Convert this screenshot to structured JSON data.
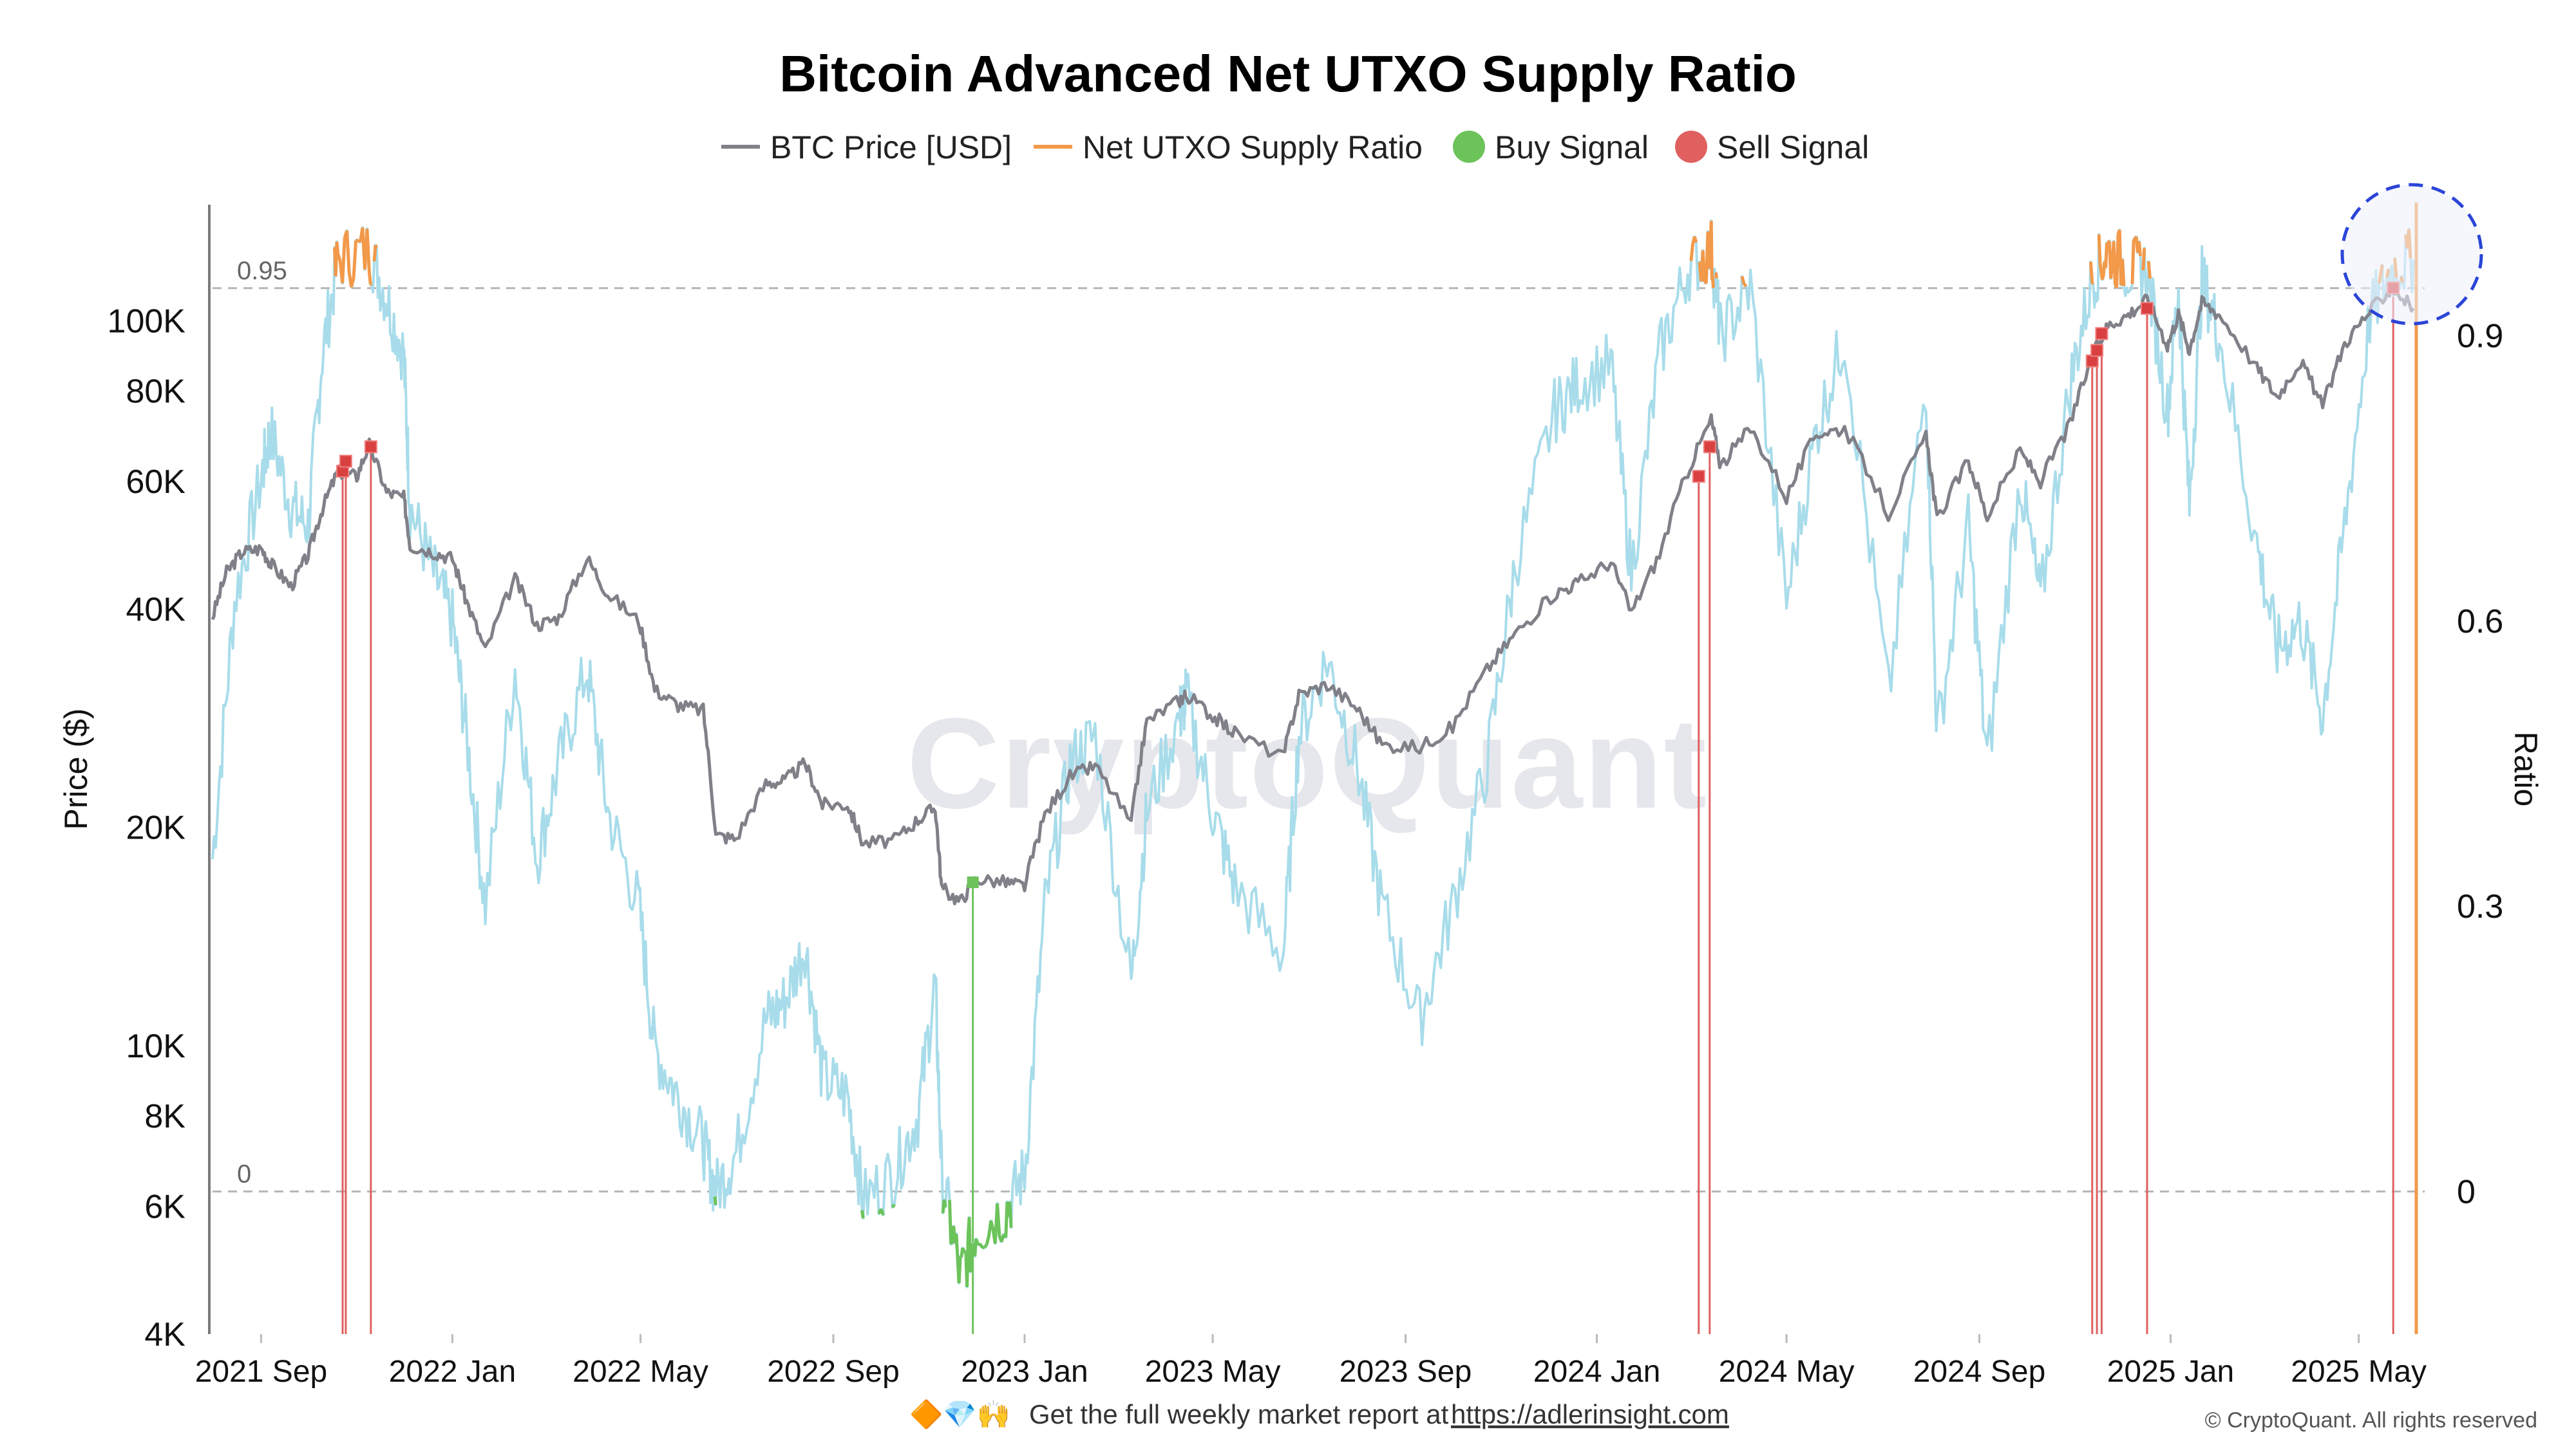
{
  "chart_data": {
    "type": "line",
    "title": "Bitcoin Advanced Net UTXO Supply Ratio",
    "legend": [
      {
        "name": "BTC Price [USD]",
        "marker": "line",
        "color": "#808089"
      },
      {
        "name": "Net UTXO Supply Ratio",
        "marker": "line",
        "color": "#f2994a"
      },
      {
        "name": "Buy Signal",
        "marker": "dot",
        "color": "#6cc35a"
      },
      {
        "name": "Sell Signal",
        "marker": "dot",
        "color": "#e06060"
      }
    ],
    "legend_position": "top-center",
    "y_left": {
      "label": "Price ($)",
      "scale": "log",
      "range": [
        4000,
        150000
      ],
      "ticks": [
        {
          "value": 4000,
          "label": "4K"
        },
        {
          "value": 6000,
          "label": "6K"
        },
        {
          "value": 8000,
          "label": "8K"
        },
        {
          "value": 10000,
          "label": "10K"
        },
        {
          "value": 20000,
          "label": "20K"
        },
        {
          "value": 40000,
          "label": "40K"
        },
        {
          "value": 60000,
          "label": "60K"
        },
        {
          "value": 80000,
          "label": "80K"
        },
        {
          "value": 100000,
          "label": "100K"
        }
      ]
    },
    "y_right": {
      "label": "Ratio",
      "range": [
        -0.15,
        1.05
      ],
      "ticks": [
        {
          "value": 0,
          "label": "0"
        },
        {
          "value": 0.3,
          "label": "0.3"
        },
        {
          "value": 0.6,
          "label": "0.6"
        },
        {
          "value": 0.9,
          "label": "0.9"
        }
      ]
    },
    "x_range": [
      "2021-08-01",
      "2025-06-10"
    ],
    "x_ticks": [
      {
        "date": "2021-09-01",
        "label": "2021 Sep"
      },
      {
        "date": "2022-01-01",
        "label": "2022 Jan"
      },
      {
        "date": "2022-05-01",
        "label": "2022 May"
      },
      {
        "date": "2022-09-01",
        "label": "2022 Sep"
      },
      {
        "date": "2023-01-01",
        "label": "2023 Jan"
      },
      {
        "date": "2023-05-01",
        "label": "2023 May"
      },
      {
        "date": "2023-09-01",
        "label": "2023 Sep"
      },
      {
        "date": "2024-01-01",
        "label": "2024 Jan"
      },
      {
        "date": "2024-05-01",
        "label": "2024 May"
      },
      {
        "date": "2024-09-01",
        "label": "2024 Sep"
      },
      {
        "date": "2025-01-01",
        "label": "2025 Jan"
      },
      {
        "date": "2025-05-01",
        "label": "2025 May"
      }
    ],
    "reference_lines": [
      {
        "value": 0.95,
        "label": "0.95"
      },
      {
        "value": 0,
        "label": "0"
      }
    ],
    "grid": false,
    "watermark": "CryptoQuant",
    "colors": {
      "price": "#808089",
      "ratio": "#a8dcea",
      "ratio_above": "#f2994a",
      "ratio_below": "#6cc35a",
      "buy": "#6cc35a",
      "sell": "#e06060",
      "highlight_circle": "#2b45d8"
    },
    "series": [
      {
        "name": "BTC Price [USD]",
        "points": [
          [
            "2021-08-01",
            39000
          ],
          [
            "2021-08-10",
            45000
          ],
          [
            "2021-08-20",
            48000
          ],
          [
            "2021-09-01",
            48500
          ],
          [
            "2021-09-08",
            46000
          ],
          [
            "2021-09-20",
            43000
          ],
          [
            "2021-10-01",
            47500
          ],
          [
            "2021-10-10",
            55000
          ],
          [
            "2021-10-20",
            62000
          ],
          [
            "2021-11-01",
            61000
          ],
          [
            "2021-11-09",
            67500
          ],
          [
            "2021-11-20",
            58000
          ],
          [
            "2021-12-01",
            57000
          ],
          [
            "2021-12-05",
            49000
          ],
          [
            "2021-12-20",
            48000
          ],
          [
            "2022-01-01",
            47000
          ],
          [
            "2022-01-10",
            41000
          ],
          [
            "2022-01-22",
            35000
          ],
          [
            "2022-02-10",
            44000
          ],
          [
            "2022-02-24",
            38000
          ],
          [
            "2022-03-10",
            39000
          ],
          [
            "2022-03-28",
            47000
          ],
          [
            "2022-04-10",
            42000
          ],
          [
            "2022-04-30",
            38500
          ],
          [
            "2022-05-10",
            31000
          ],
          [
            "2022-05-25",
            29500
          ],
          [
            "2022-06-10",
            29000
          ],
          [
            "2022-06-18",
            19500
          ],
          [
            "2022-07-01",
            19300
          ],
          [
            "2022-07-20",
            23000
          ],
          [
            "2022-08-01",
            23200
          ],
          [
            "2022-08-14",
            24500
          ],
          [
            "2022-08-25",
            21500
          ],
          [
            "2022-09-10",
            21500
          ],
          [
            "2022-09-20",
            19000
          ],
          [
            "2022-10-10",
            19200
          ],
          [
            "2022-10-25",
            20500
          ],
          [
            "2022-11-05",
            21300
          ],
          [
            "2022-11-09",
            16500
          ],
          [
            "2022-11-21",
            15800
          ],
          [
            "2022-12-01",
            17000
          ],
          [
            "2022-12-20",
            16800
          ],
          [
            "2023-01-01",
            16600
          ],
          [
            "2023-01-14",
            20800
          ],
          [
            "2023-01-30",
            23500
          ],
          [
            "2023-02-15",
            24300
          ],
          [
            "2023-03-10",
            20200
          ],
          [
            "2023-03-20",
            28000
          ],
          [
            "2023-04-10",
            30000
          ],
          [
            "2023-04-14",
            30500
          ],
          [
            "2023-05-01",
            28500
          ],
          [
            "2023-05-15",
            27000
          ],
          [
            "2023-06-15",
            25000
          ],
          [
            "2023-06-25",
            30500
          ],
          [
            "2023-07-13",
            31500
          ],
          [
            "2023-08-01",
            29200
          ],
          [
            "2023-08-17",
            26000
          ],
          [
            "2023-09-10",
            25800
          ],
          [
            "2023-10-01",
            27500
          ],
          [
            "2023-10-23",
            33000
          ],
          [
            "2023-11-10",
            37000
          ],
          [
            "2023-12-05",
            42000
          ],
          [
            "2023-12-20",
            43500
          ],
          [
            "2024-01-10",
            46500
          ],
          [
            "2024-01-23",
            39500
          ],
          [
            "2024-02-10",
            47500
          ],
          [
            "2024-02-28",
            62000
          ],
          [
            "2024-03-14",
            73000
          ],
          [
            "2024-03-20",
            63000
          ],
          [
            "2024-04-08",
            71000
          ],
          [
            "2024-05-01",
            57000
          ],
          [
            "2024-05-20",
            70000
          ],
          [
            "2024-06-07",
            71000
          ],
          [
            "2024-07-05",
            54000
          ],
          [
            "2024-07-29",
            69000
          ],
          [
            "2024-08-05",
            53000
          ],
          [
            "2024-08-25",
            64000
          ],
          [
            "2024-09-06",
            53500
          ],
          [
            "2024-09-27",
            66000
          ],
          [
            "2024-10-10",
            60000
          ],
          [
            "2024-10-29",
            72000
          ],
          [
            "2024-11-12",
            89000
          ],
          [
            "2024-11-22",
            98500
          ],
          [
            "2024-12-05",
            102000
          ],
          [
            "2024-12-17",
            107000
          ],
          [
            "2024-12-30",
            92500
          ],
          [
            "2025-01-06",
            102000
          ],
          [
            "2025-01-13",
            91000
          ],
          [
            "2025-01-21",
            106000
          ],
          [
            "2025-02-01",
            102000
          ],
          [
            "2025-02-25",
            86000
          ],
          [
            "2025-03-10",
            78500
          ],
          [
            "2025-03-25",
            88000
          ],
          [
            "2025-04-08",
            76000
          ],
          [
            "2025-04-22",
            93000
          ],
          [
            "2025-05-08",
            103000
          ],
          [
            "2025-05-22",
            111000
          ],
          [
            "2025-06-05",
            104000
          ]
        ]
      },
      {
        "name": "Net UTXO Supply Ratio",
        "points": [
          [
            "2021-08-01",
            0.35
          ],
          [
            "2021-08-15",
            0.62
          ],
          [
            "2021-09-01",
            0.75
          ],
          [
            "2021-09-07",
            0.8
          ],
          [
            "2021-09-20",
            0.72
          ],
          [
            "2021-10-01",
            0.7
          ],
          [
            "2021-10-10",
            0.88
          ],
          [
            "2021-10-20",
            0.98
          ],
          [
            "2021-11-09",
            0.99
          ],
          [
            "2021-11-20",
            0.94
          ],
          [
            "2021-12-01",
            0.88
          ],
          [
            "2021-12-05",
            0.72
          ],
          [
            "2021-12-20",
            0.65
          ],
          [
            "2022-01-01",
            0.6
          ],
          [
            "2022-01-10",
            0.48
          ],
          [
            "2022-01-22",
            0.3
          ],
          [
            "2022-02-10",
            0.55
          ],
          [
            "2022-02-24",
            0.35
          ],
          [
            "2022-03-10",
            0.45
          ],
          [
            "2022-03-28",
            0.55
          ],
          [
            "2022-04-10",
            0.4
          ],
          [
            "2022-04-30",
            0.3
          ],
          [
            "2022-05-10",
            0.15
          ],
          [
            "2022-05-25",
            0.1
          ],
          [
            "2022-06-10",
            0.05
          ],
          [
            "2022-06-18",
            0.0
          ],
          [
            "2022-07-01",
            0.04
          ],
          [
            "2022-07-20",
            0.18
          ],
          [
            "2022-08-01",
            0.2
          ],
          [
            "2022-08-14",
            0.26
          ],
          [
            "2022-08-25",
            0.12
          ],
          [
            "2022-09-10",
            0.1
          ],
          [
            "2022-09-20",
            -0.01
          ],
          [
            "2022-10-10",
            0.02
          ],
          [
            "2022-10-25",
            0.08
          ],
          [
            "2022-11-05",
            0.22
          ],
          [
            "2022-11-09",
            0.02
          ],
          [
            "2022-11-21",
            -0.09
          ],
          [
            "2022-12-01",
            -0.04
          ],
          [
            "2022-12-20",
            -0.02
          ],
          [
            "2023-01-01",
            0.02
          ],
          [
            "2023-01-14",
            0.3
          ],
          [
            "2023-01-30",
            0.45
          ],
          [
            "2023-02-15",
            0.48
          ],
          [
            "2023-03-10",
            0.22
          ],
          [
            "2023-03-20",
            0.4
          ],
          [
            "2023-04-10",
            0.5
          ],
          [
            "2023-04-14",
            0.52
          ],
          [
            "2023-05-01",
            0.4
          ],
          [
            "2023-05-15",
            0.32
          ],
          [
            "2023-06-15",
            0.25
          ],
          [
            "2023-06-25",
            0.48
          ],
          [
            "2023-07-13",
            0.56
          ],
          [
            "2023-08-01",
            0.45
          ],
          [
            "2023-08-17",
            0.3
          ],
          [
            "2023-09-10",
            0.18
          ],
          [
            "2023-10-01",
            0.3
          ],
          [
            "2023-10-23",
            0.45
          ],
          [
            "2023-11-10",
            0.66
          ],
          [
            "2023-12-05",
            0.82
          ],
          [
            "2023-12-20",
            0.85
          ],
          [
            "2024-01-10",
            0.87
          ],
          [
            "2024-01-23",
            0.65
          ],
          [
            "2024-02-10",
            0.88
          ],
          [
            "2024-02-28",
            0.97
          ],
          [
            "2024-03-14",
            0.99
          ],
          [
            "2024-03-20",
            0.9
          ],
          [
            "2024-04-08",
            0.95
          ],
          [
            "2024-05-01",
            0.62
          ],
          [
            "2024-05-20",
            0.8
          ],
          [
            "2024-06-07",
            0.9
          ],
          [
            "2024-07-05",
            0.52
          ],
          [
            "2024-07-29",
            0.85
          ],
          [
            "2024-08-05",
            0.48
          ],
          [
            "2024-08-25",
            0.7
          ],
          [
            "2024-09-06",
            0.45
          ],
          [
            "2024-09-27",
            0.75
          ],
          [
            "2024-10-10",
            0.62
          ],
          [
            "2024-10-29",
            0.85
          ],
          [
            "2024-11-12",
            0.96
          ],
          [
            "2024-11-22",
            0.99
          ],
          [
            "2024-12-05",
            0.97
          ],
          [
            "2024-12-17",
            0.97
          ],
          [
            "2024-12-30",
            0.82
          ],
          [
            "2025-01-06",
            0.95
          ],
          [
            "2025-01-13",
            0.72
          ],
          [
            "2025-01-21",
            0.96
          ],
          [
            "2025-02-01",
            0.9
          ],
          [
            "2025-02-25",
            0.68
          ],
          [
            "2025-03-10",
            0.57
          ],
          [
            "2025-03-25",
            0.6
          ],
          [
            "2025-04-08",
            0.5
          ],
          [
            "2025-04-22",
            0.7
          ],
          [
            "2025-05-08",
            0.92
          ],
          [
            "2025-05-22",
            0.97
          ],
          [
            "2025-06-05",
            0.98
          ]
        ]
      },
      {
        "name": "Sell Signal",
        "points": [
          [
            "2021-10-23",
            62000
          ],
          [
            "2021-10-25",
            64000
          ],
          [
            "2021-11-10",
            67000
          ],
          [
            "2024-03-06",
            61000
          ],
          [
            "2024-03-13",
            67000
          ],
          [
            "2024-11-12",
            88000
          ],
          [
            "2024-11-15",
            91000
          ],
          [
            "2024-11-18",
            96000
          ],
          [
            "2024-12-17",
            104000
          ],
          [
            "2025-05-23",
            111000
          ]
        ]
      },
      {
        "name": "Buy Signal",
        "points": [
          [
            "2022-11-29",
            16800
          ]
        ]
      }
    ]
  },
  "footer": {
    "emojis": "🔶💎🙌",
    "text": "Get the full weekly market report at",
    "link": "https://adlerinsight.com",
    "copyright": "© CryptoQuant. All rights reserved"
  }
}
